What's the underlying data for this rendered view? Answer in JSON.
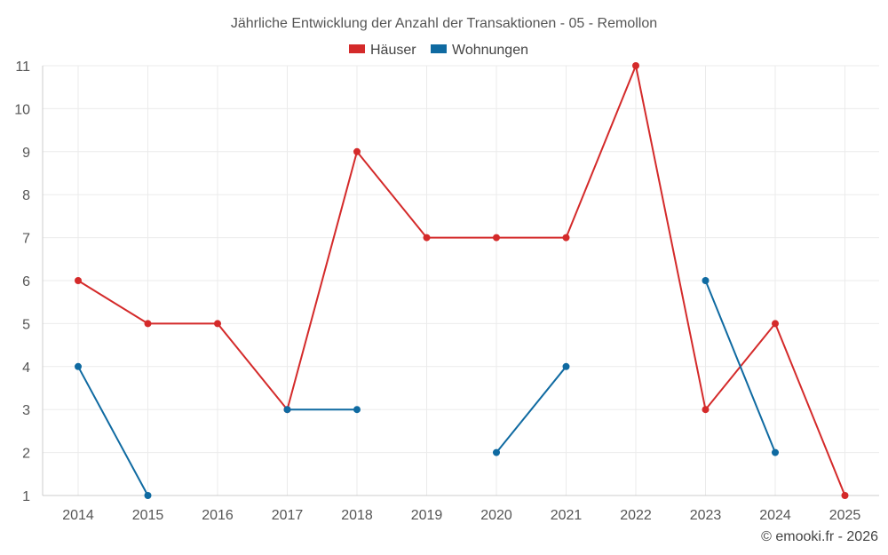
{
  "chart_data": {
    "type": "line",
    "title": "Jährliche Entwicklung der Anzahl der Transaktionen - 05 - Remollon",
    "categories": [
      "2014",
      "2015",
      "2016",
      "2017",
      "2018",
      "2019",
      "2020",
      "2021",
      "2022",
      "2023",
      "2024",
      "2025"
    ],
    "y_ticks": [
      "1",
      "2",
      "3",
      "4",
      "5",
      "6",
      "7",
      "8",
      "9",
      "10",
      "11"
    ],
    "ylim": [
      1,
      11
    ],
    "grid": true,
    "legend_position": "top-center",
    "series": [
      {
        "name": "Häuser",
        "color": "#d42a2a",
        "values": [
          6,
          5,
          5,
          3,
          9,
          7,
          7,
          7,
          11,
          3,
          5,
          1
        ]
      },
      {
        "name": "Wohnungen",
        "color": "#0f6aa1",
        "values": [
          4,
          1,
          null,
          3,
          3,
          null,
          2,
          4,
          null,
          6,
          2,
          null
        ]
      }
    ]
  },
  "credit": "© emooki.fr - 2026"
}
